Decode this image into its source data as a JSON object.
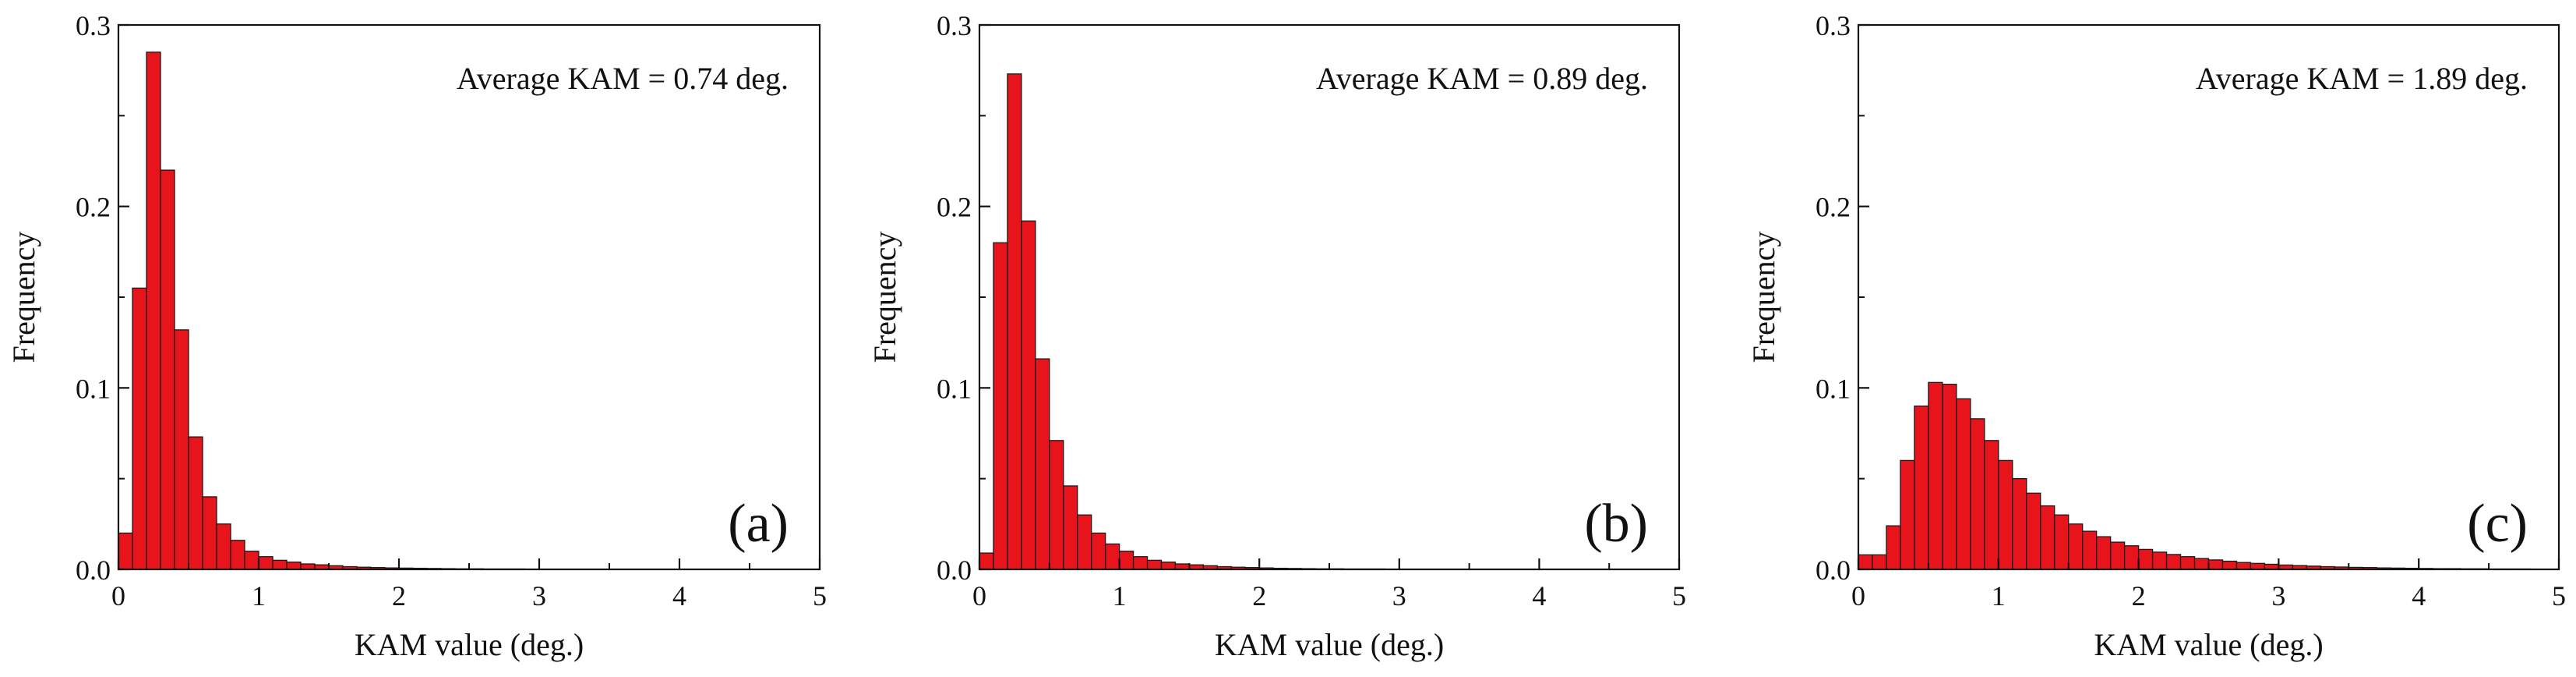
{
  "chart_data": [
    {
      "type": "bar",
      "panel_label": "(a)",
      "annotation": "Average KAM = 0.74 deg.",
      "xlabel": "KAM value (deg.)",
      "ylabel": "Frequency",
      "xlim": [
        0,
        5
      ],
      "ylim": [
        0,
        0.3
      ],
      "xticks": [
        0,
        1,
        2,
        3,
        4,
        5
      ],
      "yticks": [
        0.0,
        0.1,
        0.2,
        0.3
      ],
      "ytick_labels": [
        "0.0",
        "0.1",
        "0.2",
        "0.3"
      ],
      "bin_width": 0.1,
      "color": "#e8141b",
      "x": [
        0.05,
        0.15,
        0.25,
        0.35,
        0.45,
        0.55,
        0.65,
        0.75,
        0.85,
        0.95,
        1.05,
        1.15,
        1.25,
        1.35,
        1.45,
        1.55,
        1.65,
        1.75,
        1.85,
        1.95,
        2.05,
        2.15,
        2.25,
        2.35,
        2.45,
        2.55,
        2.65,
        2.75,
        2.85,
        2.95
      ],
      "values": [
        0.02,
        0.155,
        0.285,
        0.22,
        0.132,
        0.073,
        0.04,
        0.025,
        0.016,
        0.01,
        0.007,
        0.005,
        0.004,
        0.003,
        0.0025,
        0.002,
        0.0015,
        0.0012,
        0.001,
        0.0008,
        0.0007,
        0.0006,
        0.0005,
        0.0004,
        0.0003,
        0.0003,
        0.0002,
        0.0002,
        0.0002,
        0.0001
      ]
    },
    {
      "type": "bar",
      "panel_label": "(b)",
      "annotation": "Average KAM = 0.89 deg.",
      "xlabel": "KAM value (deg.)",
      "ylabel": "Frequency",
      "xlim": [
        0,
        5
      ],
      "ylim": [
        0,
        0.3
      ],
      "xticks": [
        0,
        1,
        2,
        3,
        4,
        5
      ],
      "yticks": [
        0.0,
        0.1,
        0.2,
        0.3
      ],
      "ytick_labels": [
        "0.0",
        "0.1",
        "0.2",
        "0.3"
      ],
      "bin_width": 0.1,
      "color": "#e8141b",
      "x": [
        0.05,
        0.15,
        0.25,
        0.35,
        0.45,
        0.55,
        0.65,
        0.75,
        0.85,
        0.95,
        1.05,
        1.15,
        1.25,
        1.35,
        1.45,
        1.55,
        1.65,
        1.75,
        1.85,
        1.95,
        2.05,
        2.15,
        2.25,
        2.35,
        2.45,
        2.55,
        2.65,
        2.75,
        2.85,
        2.95,
        3.05,
        3.15
      ],
      "values": [
        0.009,
        0.18,
        0.273,
        0.192,
        0.116,
        0.071,
        0.046,
        0.03,
        0.02,
        0.014,
        0.01,
        0.007,
        0.005,
        0.004,
        0.003,
        0.0025,
        0.002,
        0.0015,
        0.0012,
        0.001,
        0.0008,
        0.0006,
        0.0005,
        0.0004,
        0.0003,
        0.0003,
        0.0002,
        0.0002,
        0.0002,
        0.0001,
        0.0001,
        0.0001
      ]
    },
    {
      "type": "bar",
      "panel_label": "(c)",
      "annotation": "Average KAM = 1.89 deg.",
      "xlabel": "KAM value (deg.)",
      "ylabel": "Frequency",
      "xlim": [
        0,
        5
      ],
      "ylim": [
        0,
        0.3
      ],
      "xticks": [
        0,
        1,
        2,
        3,
        4,
        5
      ],
      "yticks": [
        0.0,
        0.1,
        0.2,
        0.3
      ],
      "ytick_labels": [
        "0.0",
        "0.1",
        "0.2",
        "0.3"
      ],
      "bin_width": 0.1,
      "color": "#e8141b",
      "x": [
        0.05,
        0.15,
        0.25,
        0.35,
        0.45,
        0.55,
        0.65,
        0.75,
        0.85,
        0.95,
        1.05,
        1.15,
        1.25,
        1.35,
        1.45,
        1.55,
        1.65,
        1.75,
        1.85,
        1.95,
        2.05,
        2.15,
        2.25,
        2.35,
        2.45,
        2.55,
        2.65,
        2.75,
        2.85,
        2.95,
        3.05,
        3.15,
        3.25,
        3.35,
        3.45,
        3.55,
        3.65,
        3.75,
        3.85,
        3.95,
        4.05,
        4.15,
        4.25,
        4.35,
        4.45,
        4.55,
        4.65,
        4.75,
        4.85,
        4.95
      ],
      "values": [
        0.008,
        0.008,
        0.024,
        0.06,
        0.09,
        0.103,
        0.102,
        0.094,
        0.083,
        0.071,
        0.06,
        0.05,
        0.042,
        0.035,
        0.03,
        0.025,
        0.021,
        0.018,
        0.015,
        0.013,
        0.011,
        0.0095,
        0.0082,
        0.007,
        0.006,
        0.0052,
        0.0045,
        0.0038,
        0.0033,
        0.0028,
        0.0024,
        0.0021,
        0.0018,
        0.0015,
        0.0013,
        0.0011,
        0.001,
        0.0008,
        0.0007,
        0.0006,
        0.0005,
        0.0004,
        0.0004,
        0.0003,
        0.0003,
        0.0002,
        0.0002,
        0.0002,
        0.0001,
        0.0001
      ]
    }
  ]
}
